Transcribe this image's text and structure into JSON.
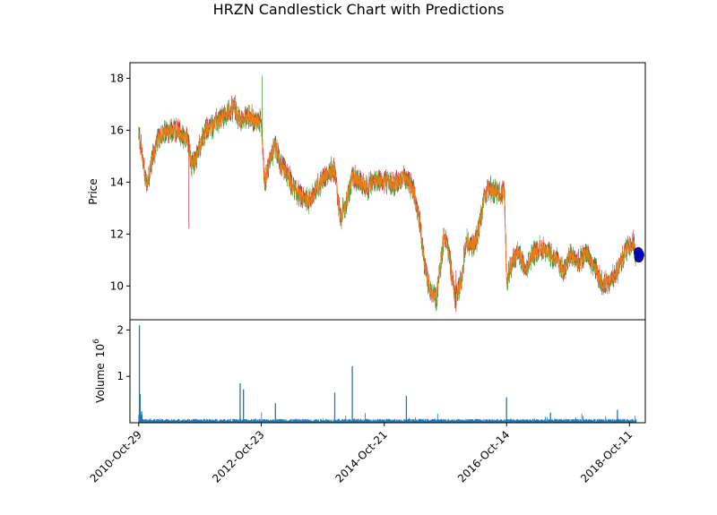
{
  "chart_data": {
    "type": "candlestick",
    "title": "HRZN Candlestick Chart with Predictions",
    "price_panel": {
      "ylabel": "Price",
      "ylim": [
        8.7,
        18.6
      ],
      "yticks": [
        10,
        12,
        14,
        16,
        18
      ],
      "up_color": "#2ca02c",
      "down_color": "#d62728",
      "line_color": "#ff7f0e",
      "predictions": {
        "color": "#0000cc",
        "points": [
          {
            "date": "2018-Dec-03",
            "value": 11.28
          },
          {
            "date": "2018-Dec-06",
            "value": 11.12
          },
          {
            "date": "2018-Dec-10",
            "value": 11.2
          }
        ]
      },
      "anchors": [
        {
          "date": "2010-Oct-29",
          "value": 15.9
        },
        {
          "date": "2010-Nov-20",
          "value": 14.9
        },
        {
          "date": "2010-Dec-15",
          "value": 13.9
        },
        {
          "date": "2011-Jan-20",
          "value": 15.0
        },
        {
          "date": "2011-Mar-01",
          "value": 15.8
        },
        {
          "date": "2011-May-01",
          "value": 16.0
        },
        {
          "date": "2011-Jul-01",
          "value": 15.9
        },
        {
          "date": "2011-Aug-10",
          "value": 15.7
        },
        {
          "date": "2011-Sep-10",
          "value": 14.6
        },
        {
          "date": "2011-Oct-15",
          "value": 15.2
        },
        {
          "date": "2011-Dec-01",
          "value": 16.0
        },
        {
          "date": "2012-Feb-01",
          "value": 16.3
        },
        {
          "date": "2012-Apr-01",
          "value": 16.6
        },
        {
          "date": "2012-May-15",
          "value": 16.9
        },
        {
          "date": "2012-Jun-20",
          "value": 16.3
        },
        {
          "date": "2012-Aug-01",
          "value": 16.6
        },
        {
          "date": "2012-Sep-15",
          "value": 16.3
        },
        {
          "date": "2012-Oct-23",
          "value": 16.4
        },
        {
          "date": "2012-Nov-10",
          "value": 14.0
        },
        {
          "date": "2012-Dec-15",
          "value": 14.9
        },
        {
          "date": "2013-Jan-15",
          "value": 15.4
        },
        {
          "date": "2013-Feb-20",
          "value": 14.6
        },
        {
          "date": "2013-Apr-01",
          "value": 14.2
        },
        {
          "date": "2013-May-10",
          "value": 13.7
        },
        {
          "date": "2013-Jun-20",
          "value": 13.4
        },
        {
          "date": "2013-Aug-10",
          "value": 13.3
        },
        {
          "date": "2013-Sep-20",
          "value": 13.8
        },
        {
          "date": "2013-Nov-10",
          "value": 14.3
        },
        {
          "date": "2014-Jan-01",
          "value": 14.5
        },
        {
          "date": "2014-Feb-01",
          "value": 12.6
        },
        {
          "date": "2014-Mar-10",
          "value": 13.2
        },
        {
          "date": "2014-Apr-15",
          "value": 14.2
        },
        {
          "date": "2014-Jun-01",
          "value": 14.0
        },
        {
          "date": "2014-Jul-15",
          "value": 13.8
        },
        {
          "date": "2014-Sep-01",
          "value": 14.1
        },
        {
          "date": "2014-Oct-21",
          "value": 14.0
        },
        {
          "date": "2014-Dec-10",
          "value": 13.9
        },
        {
          "date": "2015-Jan-20",
          "value": 14.1
        },
        {
          "date": "2015-Mar-01",
          "value": 14.2
        },
        {
          "date": "2015-Apr-15",
          "value": 13.6
        },
        {
          "date": "2015-May-20",
          "value": 12.4
        },
        {
          "date": "2015-Jun-15",
          "value": 10.9
        },
        {
          "date": "2015-Jul-15",
          "value": 9.8
        },
        {
          "date": "2015-Aug-25",
          "value": 9.5
        },
        {
          "date": "2015-Oct-10",
          "value": 12.0
        },
        {
          "date": "2015-Nov-01",
          "value": 11.5
        },
        {
          "date": "2015-Dec-15",
          "value": 9.5
        },
        {
          "date": "2016-Jan-20",
          "value": 10.2
        },
        {
          "date": "2016-Feb-15",
          "value": 11.8
        },
        {
          "date": "2016-Mar-15",
          "value": 11.5
        },
        {
          "date": "2016-Apr-20",
          "value": 11.8
        },
        {
          "date": "2016-Jun-01",
          "value": 13.3
        },
        {
          "date": "2016-Jul-01",
          "value": 13.8
        },
        {
          "date": "2016-Aug-15",
          "value": 13.6
        },
        {
          "date": "2016-Oct-01",
          "value": 13.6
        },
        {
          "date": "2016-Oct-14",
          "value": 10.2
        },
        {
          "date": "2016-Nov-10",
          "value": 10.8
        },
        {
          "date": "2016-Dec-20",
          "value": 11.3
        },
        {
          "date": "2017-Feb-01",
          "value": 10.7
        },
        {
          "date": "2017-Mar-15",
          "value": 11.2
        },
        {
          "date": "2017-May-01",
          "value": 11.5
        },
        {
          "date": "2017-Jun-15",
          "value": 11.3
        },
        {
          "date": "2017-Aug-01",
          "value": 11.0
        },
        {
          "date": "2017-Sep-15",
          "value": 10.6
        },
        {
          "date": "2017-Nov-01",
          "value": 11.2
        },
        {
          "date": "2017-Dec-15",
          "value": 10.9
        },
        {
          "date": "2018-Feb-01",
          "value": 11.3
        },
        {
          "date": "2018-Mar-15",
          "value": 10.7
        },
        {
          "date": "2018-May-01",
          "value": 10.1
        },
        {
          "date": "2018-Jun-15",
          "value": 10.2
        },
        {
          "date": "2018-Aug-01",
          "value": 10.6
        },
        {
          "date": "2018-Sep-15",
          "value": 11.3
        },
        {
          "date": "2018-Oct-11",
          "value": 11.5
        },
        {
          "date": "2018-Nov-01",
          "value": 11.7
        },
        {
          "date": "2018-Nov-20",
          "value": 11.1
        }
      ],
      "spikes": [
        {
          "date": "2011-Aug-22",
          "low": 12.2,
          "high": 15.8
        },
        {
          "date": "2012-Oct-29",
          "low": 15.6,
          "high": 18.1
        },
        {
          "date": "2015-Dec-20",
          "low": 9.0,
          "high": 10.6
        }
      ]
    },
    "volume_panel": {
      "ylabel": "Volume",
      "scale_label": "10",
      "scale_exponent": "6",
      "ylim": [
        0,
        2.22
      ],
      "yticks": [
        1,
        2
      ],
      "bar_color": "#1f77b4",
      "base_level": 0.06,
      "spikes": [
        {
          "date": "2010-Nov-02",
          "value": 2.1
        },
        {
          "date": "2010-Nov-06",
          "value": 0.62
        },
        {
          "date": "2010-Nov-15",
          "value": 0.25
        },
        {
          "date": "2012-Jun-20",
          "value": 0.85
        },
        {
          "date": "2012-Jul-10",
          "value": 0.72
        },
        {
          "date": "2013-Jan-15",
          "value": 0.42
        },
        {
          "date": "2014-Jan-01",
          "value": 0.65
        },
        {
          "date": "2014-Apr-15",
          "value": 1.22
        },
        {
          "date": "2015-Mar-01",
          "value": 0.58
        },
        {
          "date": "2016-Oct-14",
          "value": 0.55
        },
        {
          "date": "2017-Jul-01",
          "value": 0.22
        },
        {
          "date": "2018-Aug-01",
          "value": 0.28
        }
      ]
    },
    "xaxis": {
      "ticks": [
        "2010-Oct-29",
        "2012-Oct-23",
        "2014-Oct-21",
        "2016-Oct-14",
        "2018-Oct-11"
      ],
      "range": [
        "2010-Sep-07",
        "2019-Jan-13"
      ],
      "data_end": "2018-Nov-20",
      "tick_rotation": 45
    }
  }
}
